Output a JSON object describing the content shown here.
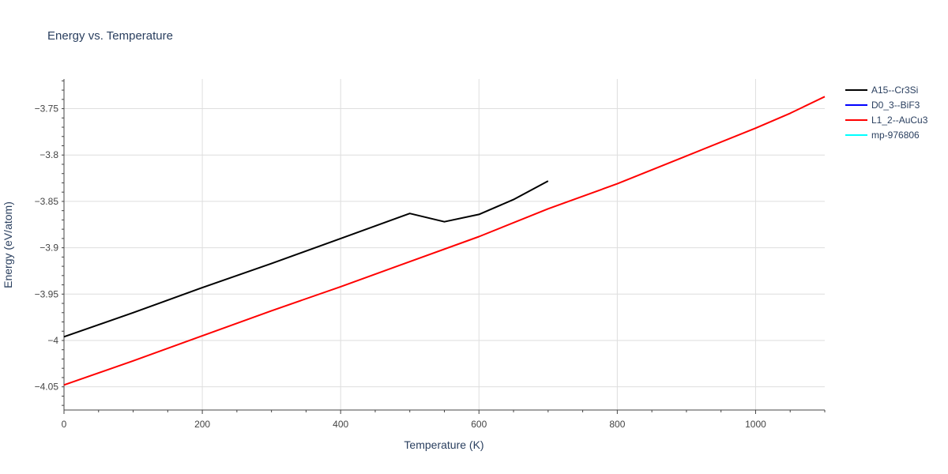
{
  "chart_data": {
    "type": "line",
    "title": "Energy vs. Temperature",
    "xlabel": "Temperature (K)",
    "ylabel": "Energy (eV/atom)",
    "xlim": [
      0,
      1100
    ],
    "ylim": [
      -4.075,
      -3.718
    ],
    "x_ticks": [
      0,
      200,
      400,
      600,
      800,
      1000
    ],
    "x_tick_labels": [
      "0",
      "200",
      "400",
      "600",
      "800",
      "1000"
    ],
    "y_ticks": [
      -4.05,
      -4,
      -3.95,
      -3.9,
      -3.85,
      -3.8,
      -3.75
    ],
    "y_tick_labels": [
      "−4.05",
      "−4",
      "−3.95",
      "−3.9",
      "−3.85",
      "−3.8",
      "−3.75"
    ],
    "grid": true,
    "legend_position": "top-right",
    "series": [
      {
        "name": "A15--Cr3Si",
        "color": "#000000",
        "x": [
          0,
          100,
          200,
          300,
          400,
          500,
          550,
          600,
          650,
          700
        ],
        "y": [
          -3.996,
          -3.97,
          -3.943,
          -3.917,
          -3.89,
          -3.863,
          -3.872,
          -3.864,
          -3.848,
          -3.828
        ]
      },
      {
        "name": "D0_3--BiF3",
        "color": "#0000ff",
        "x": [],
        "y": []
      },
      {
        "name": "L1_2--AuCu3",
        "color": "#ff0000",
        "x": [
          0,
          100,
          200,
          300,
          400,
          500,
          600,
          700,
          800,
          900,
          1000,
          1050,
          1100
        ],
        "y": [
          -4.048,
          -4.022,
          -3.995,
          -3.968,
          -3.942,
          -3.915,
          -3.888,
          -3.858,
          -3.831,
          -3.801,
          -3.771,
          -3.755,
          -3.737
        ]
      },
      {
        "name": "mp-976806",
        "color": "#00ffff",
        "x": [],
        "y": []
      }
    ]
  }
}
